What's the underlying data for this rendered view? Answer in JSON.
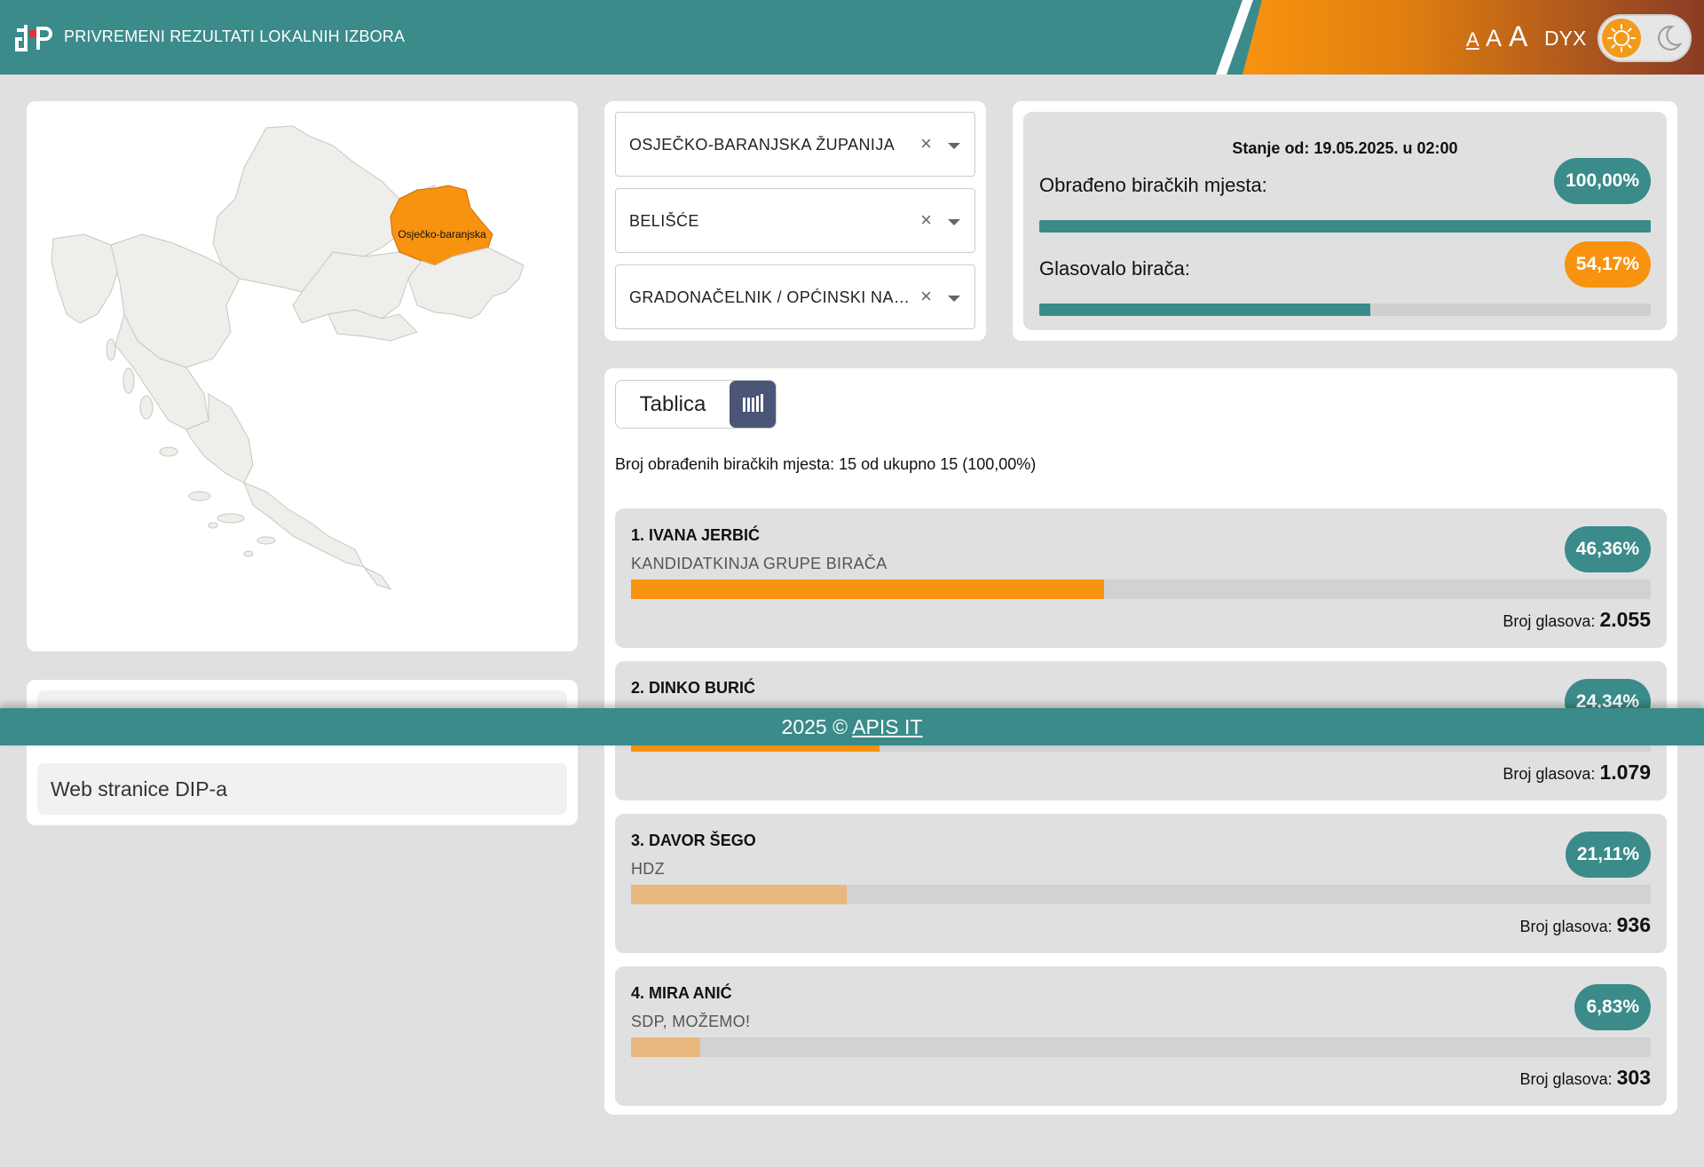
{
  "header": {
    "title": "PRIVREMENI REZULTATI LOKALNIH IZBORA",
    "font_small": "A",
    "font_medium": "A",
    "font_large": "A",
    "dyslexia": "DYX",
    "theme_icons": [
      "sun-icon",
      "moon-icon"
    ]
  },
  "map": {
    "selected_region": "Osječko-baranjska",
    "highlight_color": "#f7930f"
  },
  "filters": {
    "county": "OSJEČKO-BARANJSKA ŽUPANIJA",
    "municipality": "BELIŠĆE",
    "election": "GRADONAČELNIK / OPĆINSKI NAČ...",
    "clear_symbol": "×"
  },
  "status": {
    "timestamp": "Stanje od: 19.05.2025. u 02:00",
    "processed_label": "Obrađeno biračkih mjesta:",
    "processed_value": "100,00%",
    "processed_fraction": 1.0,
    "turnout_label": "Glasovalo birača:",
    "turnout_value": "54,17%",
    "turnout_fraction": 0.5417
  },
  "results": {
    "view_table_label": "Tablica",
    "chart_icon": "bar-chart-icon",
    "count_text": "Broj obrađenih biračkih mjesta: 15 od ukupno 15 (100,00%)",
    "votes_label": "Broj glasova:",
    "candidates": [
      {
        "name": "1. IVANA JERBIĆ",
        "party": "KANDIDATKINJA GRUPE BIRAČA",
        "percent": "46,36%",
        "fraction": 0.4636,
        "votes": "2.055",
        "pill_color": "#3a8b8a",
        "bar_color": "#f7930f"
      },
      {
        "name": "2. DINKO BURIĆ",
        "party": "",
        "percent": "24,34%",
        "fraction": 0.2434,
        "votes": "1.079",
        "pill_color": "#3a8b8a",
        "bar_color": "#f7930f"
      },
      {
        "name": "3. DAVOR ŠEGO",
        "party": "HDZ",
        "percent": "21,11%",
        "fraction": 0.2111,
        "votes": "936",
        "pill_color": "#3a8b8a",
        "bar_color": "#e8b87e"
      },
      {
        "name": "4. MIRA ANIĆ",
        "party": "SDP, MOŽEMO!",
        "percent": "6,83%",
        "fraction": 0.0683,
        "votes": "303",
        "pill_color": "#3a8b8a",
        "bar_color": "#e8b87e"
      }
    ]
  },
  "links": {
    "dip_website": "Web stranice DIP-a"
  },
  "footer": {
    "copyright": "2025 ©",
    "company": "APIS IT"
  }
}
